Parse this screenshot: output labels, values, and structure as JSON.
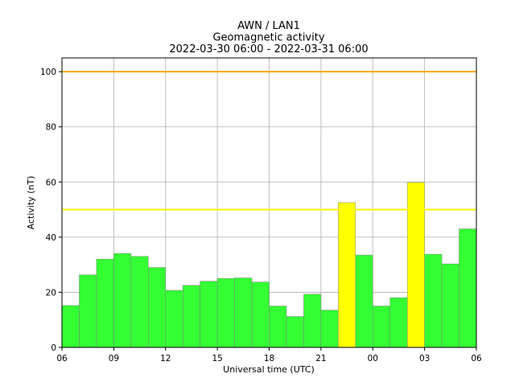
{
  "chart_data": {
    "type": "bar",
    "title_lines": [
      "AWN / LAN1",
      "Geomagnetic activity",
      "2022-03-30 06:00 - 2022-03-31 06:00"
    ],
    "xlabel": "Universal time (UTC)",
    "ylabel": "Activity (nT)",
    "ylim": [
      0,
      105
    ],
    "xlim_hours": [
      0,
      24
    ],
    "x_tick_labels": [
      "06",
      "09",
      "12",
      "15",
      "18",
      "21",
      "00",
      "03",
      "06"
    ],
    "y_ticks": [
      0,
      20,
      40,
      60,
      80,
      100
    ],
    "grid": true,
    "categories": [
      "06",
      "07",
      "08",
      "09",
      "10",
      "11",
      "12",
      "13",
      "14",
      "15",
      "16",
      "17",
      "18",
      "19",
      "20",
      "21",
      "22",
      "23",
      "00",
      "01",
      "02",
      "03",
      "04",
      "05"
    ],
    "values": [
      15.2,
      26.3,
      32.0,
      34.1,
      33.0,
      29.0,
      20.7,
      22.5,
      24.0,
      25.0,
      25.2,
      23.7,
      15.0,
      11.2,
      19.3,
      13.5,
      52.5,
      33.5,
      15.0,
      18.0,
      59.8,
      33.8,
      30.3,
      43.0
    ],
    "bar_colors": [
      "#33ff33",
      "#33ff33",
      "#33ff33",
      "#33ff33",
      "#33ff33",
      "#33ff33",
      "#33ff33",
      "#33ff33",
      "#33ff33",
      "#33ff33",
      "#33ff33",
      "#33ff33",
      "#33ff33",
      "#33ff33",
      "#33ff33",
      "#33ff33",
      "#ffff00",
      "#33ff33",
      "#33ff33",
      "#33ff33",
      "#ffff00",
      "#33ff33",
      "#33ff33",
      "#33ff33"
    ],
    "threshold_lines": [
      {
        "value": 100,
        "color": "#ffa500"
      },
      {
        "value": 50,
        "color": "#ffff00"
      }
    ]
  }
}
